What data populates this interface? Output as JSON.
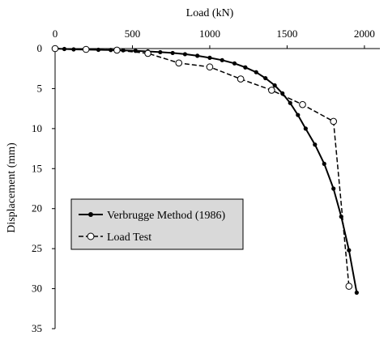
{
  "chart_data": {
    "type": "line",
    "title": "",
    "xlabel": "Load (kN)",
    "ylabel": "Displacement (mm)",
    "x_axis_position": "top",
    "y_axis_inverted": true,
    "xlim": [
      0,
      2100
    ],
    "ylim": [
      0,
      35
    ],
    "x_ticks": [
      "0",
      "500",
      "1000",
      "1500",
      "2000"
    ],
    "y_ticks": [
      "0",
      "5",
      "10",
      "15",
      "20",
      "25",
      "30",
      "35"
    ],
    "grid": false,
    "legend_position": "lower-left",
    "series": [
      {
        "name": "Verbrugge Method (1986)",
        "marker": "filled-circle",
        "line_style": "solid",
        "color": "#000000",
        "points": [
          [
            0,
            0
          ],
          [
            60,
            0.05
          ],
          [
            120,
            0.1
          ],
          [
            200,
            0.12
          ],
          [
            280,
            0.15
          ],
          [
            360,
            0.18
          ],
          [
            440,
            0.22
          ],
          [
            520,
            0.28
          ],
          [
            600,
            0.35
          ],
          [
            680,
            0.45
          ],
          [
            760,
            0.55
          ],
          [
            840,
            0.7
          ],
          [
            920,
            0.9
          ],
          [
            1000,
            1.15
          ],
          [
            1080,
            1.45
          ],
          [
            1160,
            1.85
          ],
          [
            1230,
            2.35
          ],
          [
            1300,
            2.95
          ],
          [
            1360,
            3.7
          ],
          [
            1420,
            4.6
          ],
          [
            1470,
            5.6
          ],
          [
            1520,
            6.8
          ],
          [
            1570,
            8.3
          ],
          [
            1620,
            10
          ],
          [
            1680,
            12
          ],
          [
            1740,
            14.4
          ],
          [
            1800,
            17.5
          ],
          [
            1850,
            21
          ],
          [
            1900,
            25.2
          ],
          [
            1950,
            30.5
          ]
        ]
      },
      {
        "name": "Load Test",
        "marker": "open-circle",
        "line_style": "dashed",
        "color": "#000000",
        "points": [
          [
            0,
            0
          ],
          [
            200,
            0.1
          ],
          [
            400,
            0.2
          ],
          [
            600,
            0.6
          ],
          [
            800,
            1.8
          ],
          [
            1000,
            2.3
          ],
          [
            1200,
            3.8
          ],
          [
            1400,
            5.2
          ],
          [
            1600,
            7.0
          ],
          [
            1800,
            9.1
          ],
          [
            1900,
            29.7
          ]
        ]
      }
    ]
  }
}
